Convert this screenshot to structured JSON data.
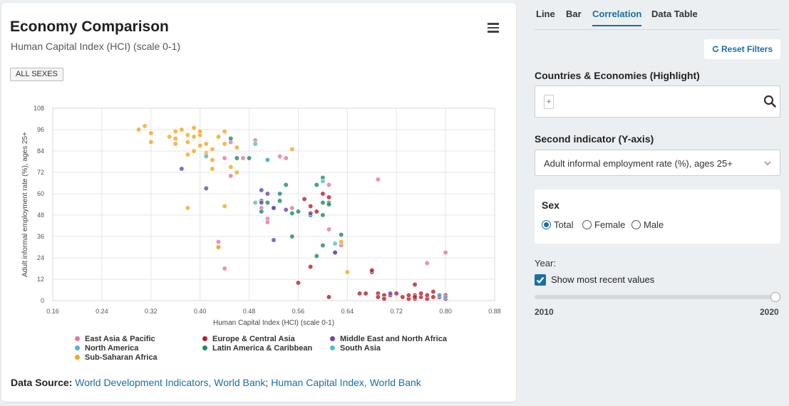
{
  "card": {
    "title": "Economy Comparison",
    "subtitle": "Human Capital Index (HCI) (scale 0-1)",
    "badge": "ALL SEXES",
    "menu_icon": "hamburger-menu-icon"
  },
  "source": {
    "label": "Data Source:",
    "link1": "World Development Indicators, World Bank",
    "separator": ";",
    "link2": "Human Capital Index, World Bank"
  },
  "tabs": [
    {
      "label": "Line",
      "active": false
    },
    {
      "label": "Bar",
      "active": false
    },
    {
      "label": "Correlation",
      "active": true
    },
    {
      "label": "Data Table",
      "active": false
    }
  ],
  "controls": {
    "reset_label": "Reset Filters",
    "reset_icon": "refresh-icon",
    "highlight_label": "Countries & Economies (Highlight)",
    "search_plus": "+",
    "search_placeholder": "",
    "search_icon": "search-icon",
    "second_indicator_label": "Second indicator (Y-axis)",
    "second_indicator_value": "Adult informal employment rate (%), ages 25+",
    "sex_label": "Sex",
    "sex_options": [
      {
        "label": "Total",
        "checked": true
      },
      {
        "label": "Female",
        "checked": false
      },
      {
        "label": "Male",
        "checked": false
      }
    ],
    "year_label": "Year:",
    "most_recent_label": "Show most recent values",
    "most_recent_checked": true,
    "year_min": "2010",
    "year_max": "2020",
    "year_value": 2020
  },
  "colors": {
    "accent": "#1a6fa1",
    "East Asia & Pacific": "#e377a6",
    "North America": "#5aaee0",
    "Sub-Saharan Africa": "#f4a623",
    "Europe & Central Asia": "#b3202f",
    "Latin America & Caribbean": "#1c8a6c",
    "Middle East and North Africa": "#6e47a8",
    "South Asia": "#52c1c1"
  },
  "chart_data": {
    "type": "scatter",
    "xlabel": "Human Capital Index (HCI) (scale 0-1)",
    "ylabel": "Adult informal employment rate (%), ages 25+",
    "xlim": [
      0.16,
      0.88
    ],
    "ylim": [
      0,
      108
    ],
    "xticks": [
      "0.16",
      "0.24",
      "0.32",
      "0.40",
      "0.48",
      "0.56",
      "0.64",
      "0.72",
      "0.80",
      "0.88"
    ],
    "yticks": [
      "0",
      "12",
      "24",
      "36",
      "48",
      "60",
      "72",
      "84",
      "96",
      "108"
    ],
    "grid": true,
    "legend_position": "bottom",
    "series": [
      {
        "name": "East Asia & Pacific",
        "points": [
          [
            0.45,
            89
          ],
          [
            0.49,
            90
          ],
          [
            0.44,
            80
          ],
          [
            0.47,
            80
          ],
          [
            0.53,
            81
          ],
          [
            0.54,
            80
          ],
          [
            0.45,
            70
          ],
          [
            0.5,
            52
          ],
          [
            0.51,
            46
          ],
          [
            0.51,
            44
          ],
          [
            0.61,
            65
          ],
          [
            0.63,
            31
          ],
          [
            0.61,
            40
          ],
          [
            0.69,
            68
          ],
          [
            0.77,
            21
          ],
          [
            0.8,
            27
          ],
          [
            0.43,
            30
          ],
          [
            0.44,
            18
          ],
          [
            0.43,
            33
          ],
          [
            0.55,
            52
          ]
        ]
      },
      {
        "name": "Sub-Saharan Africa",
        "points": [
          [
            0.3,
            96
          ],
          [
            0.31,
            98
          ],
          [
            0.32,
            94
          ],
          [
            0.32,
            89
          ],
          [
            0.35,
            92
          ],
          [
            0.36,
            95
          ],
          [
            0.36,
            88
          ],
          [
            0.37,
            96
          ],
          [
            0.38,
            93
          ],
          [
            0.38,
            89
          ],
          [
            0.39,
            92
          ],
          [
            0.39,
            97
          ],
          [
            0.4,
            93
          ],
          [
            0.4,
            95
          ],
          [
            0.41,
            88
          ],
          [
            0.41,
            83
          ],
          [
            0.42,
            85
          ],
          [
            0.43,
            92
          ],
          [
            0.44,
            95
          ],
          [
            0.42,
            79
          ],
          [
            0.44,
            88
          ],
          [
            0.42,
            74
          ],
          [
            0.39,
            84
          ],
          [
            0.4,
            87
          ],
          [
            0.38,
            82
          ],
          [
            0.36,
            91
          ],
          [
            0.45,
            75
          ],
          [
            0.46,
            86
          ],
          [
            0.46,
            72
          ],
          [
            0.55,
            85
          ],
          [
            0.38,
            52
          ],
          [
            0.44,
            53
          ],
          [
            0.43,
            30
          ],
          [
            0.63,
            33
          ],
          [
            0.64,
            16
          ],
          [
            0.41,
            82
          ]
        ]
      },
      {
        "name": "Europe & Central Asia",
        "points": [
          [
            0.57,
            57
          ],
          [
            0.58,
            53
          ],
          [
            0.59,
            50
          ],
          [
            0.6,
            60
          ],
          [
            0.61,
            58
          ],
          [
            0.56,
            10
          ],
          [
            0.58,
            19
          ],
          [
            0.61,
            2
          ],
          [
            0.66,
            4
          ],
          [
            0.67,
            4
          ],
          [
            0.68,
            16
          ],
          [
            0.68,
            17
          ],
          [
            0.69,
            4
          ],
          [
            0.69,
            2
          ],
          [
            0.7,
            3
          ],
          [
            0.7,
            1
          ],
          [
            0.71,
            3
          ],
          [
            0.72,
            4
          ],
          [
            0.73,
            2
          ],
          [
            0.74,
            1
          ],
          [
            0.74,
            3
          ],
          [
            0.75,
            1
          ],
          [
            0.75,
            3
          ],
          [
            0.76,
            2
          ],
          [
            0.76,
            4
          ],
          [
            0.77,
            1
          ],
          [
            0.77,
            3
          ],
          [
            0.78,
            5
          ],
          [
            0.78,
            2
          ],
          [
            0.79,
            3
          ],
          [
            0.8,
            3
          ],
          [
            0.8,
            1
          ],
          [
            0.75,
            9
          ],
          [
            0.79,
            2
          ],
          [
            0.75,
            2
          ]
        ]
      },
      {
        "name": "Latin America & Caribbean",
        "points": [
          [
            0.45,
            91
          ],
          [
            0.46,
            80
          ],
          [
            0.48,
            80
          ],
          [
            0.51,
            79
          ],
          [
            0.5,
            56
          ],
          [
            0.51,
            55
          ],
          [
            0.52,
            52
          ],
          [
            0.53,
            60
          ],
          [
            0.53,
            56
          ],
          [
            0.54,
            65
          ],
          [
            0.55,
            49
          ],
          [
            0.56,
            50
          ],
          [
            0.58,
            48
          ],
          [
            0.59,
            65
          ],
          [
            0.6,
            69
          ],
          [
            0.61,
            55
          ],
          [
            0.6,
            55
          ],
          [
            0.61,
            54
          ],
          [
            0.6,
            48
          ],
          [
            0.62,
            27
          ],
          [
            0.63,
            37
          ],
          [
            0.55,
            36
          ],
          [
            0.6,
            31
          ],
          [
            0.59,
            25
          ],
          [
            0.5,
            50
          ]
        ]
      },
      {
        "name": "Middle East and North Africa",
        "points": [
          [
            0.37,
            74
          ],
          [
            0.41,
            63
          ],
          [
            0.5,
            62
          ],
          [
            0.51,
            60
          ],
          [
            0.52,
            52
          ],
          [
            0.52,
            34
          ],
          [
            0.54,
            51
          ],
          [
            0.58,
            49
          ],
          [
            0.62,
            27
          ],
          [
            0.71,
            4
          ],
          [
            0.5,
            55
          ]
        ]
      },
      {
        "name": "North America",
        "points": [
          [
            0.79,
            3
          ],
          [
            0.8,
            2
          ]
        ]
      },
      {
        "name": "South Asia",
        "points": [
          [
            0.41,
            81
          ],
          [
            0.49,
            88
          ],
          [
            0.51,
            79
          ],
          [
            0.6,
            67
          ],
          [
            0.62,
            32
          ],
          [
            0.49,
            55
          ]
        ]
      }
    ]
  }
}
